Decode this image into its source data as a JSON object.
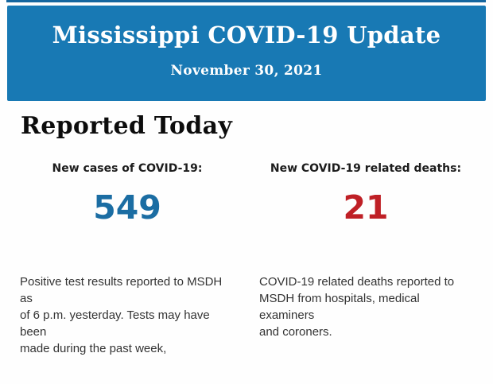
{
  "page": {
    "background": "#fefefe"
  },
  "header": {
    "title": "Mississippi COVID-19 Update",
    "date": "November 30, 2021",
    "background": "#1879b4",
    "top_strip_color": "#15669f",
    "text_color": "#ffffff"
  },
  "main": {
    "section_heading": "Reported Today",
    "stats": [
      {
        "label": "New cases of COVID-19:",
        "value": "549",
        "value_color": "#1b6da3",
        "description": "Positive test results reported to MSDH as\nof 6 p.m. yesterday. Tests may have been\nmade during the past week,"
      },
      {
        "label": "New COVID-19 related deaths:",
        "value": "21",
        "value_color": "#bf2026",
        "description": "COVID-19 related deaths reported to\nMSDH from hospitals, medical examiners\nand coroners."
      }
    ]
  }
}
